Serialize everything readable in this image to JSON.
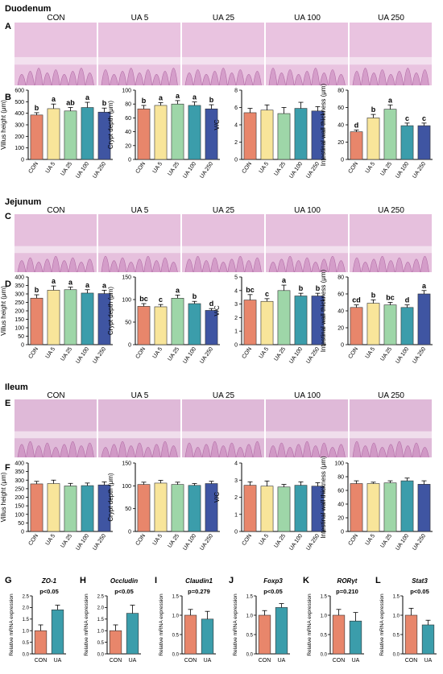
{
  "groups": [
    "CON",
    "UA 5",
    "UA 25",
    "UA 100",
    "UA 250"
  ],
  "colors": [
    "#E8866B",
    "#F8E59A",
    "#9ED6A8",
    "#3B9DAB",
    "#3F55A2"
  ],
  "sections": [
    {
      "name": "Duodenum",
      "panel_a": "A",
      "panel_b": "B"
    },
    {
      "name": "Jejunum",
      "panel_a": "C",
      "panel_b": "D"
    },
    {
      "name": "Ileum",
      "panel_a": "E",
      "panel_b": "F"
    }
  ],
  "chart_data": [
    {
      "type": "bar",
      "section": "Duodenum",
      "ylabel": "Villus height (μm)",
      "ylim": [
        0,
        600
      ],
      "ticks": [
        0,
        100,
        200,
        300,
        400,
        500,
        600
      ],
      "categories": [
        "CON",
        "UA 5",
        "UA 25",
        "UA 100",
        "UA 250"
      ],
      "values": [
        385,
        440,
        420,
        450,
        410
      ],
      "errors": [
        20,
        40,
        30,
        45,
        35
      ],
      "letters": [
        "b",
        "a",
        "ab",
        "a",
        "b"
      ]
    },
    {
      "type": "bar",
      "section": "Duodenum",
      "ylabel": "Crypt depth (μm)",
      "ylim": [
        0,
        100
      ],
      "ticks": [
        0,
        20,
        40,
        60,
        80,
        100
      ],
      "categories": [
        "CON",
        "UA 5",
        "UA 25",
        "UA 100",
        "UA 250"
      ],
      "values": [
        73,
        78,
        80,
        78,
        73
      ],
      "errors": [
        5,
        4,
        5,
        5,
        6
      ],
      "letters": [
        "b",
        "a",
        "a",
        "a",
        "b"
      ]
    },
    {
      "type": "bar",
      "section": "Duodenum",
      "ylabel": "V/C",
      "ylim": [
        0,
        8
      ],
      "ticks": [
        0,
        2,
        4,
        6,
        8
      ],
      "categories": [
        "CON",
        "UA 5",
        "UA 25",
        "UA 100",
        "UA 250"
      ],
      "values": [
        5.4,
        5.7,
        5.3,
        5.9,
        5.6
      ],
      "errors": [
        0.5,
        0.6,
        0.7,
        0.7,
        0.5
      ],
      "letters": [
        "",
        "",
        "",
        "",
        ""
      ]
    },
    {
      "type": "bar",
      "section": "Duodenum",
      "ylabel": "Intestinal wall thickness (μm)",
      "ylim": [
        0,
        80
      ],
      "ticks": [
        0,
        20,
        40,
        60,
        80
      ],
      "categories": [
        "CON",
        "UA 5",
        "UA 25",
        "UA 100",
        "UA 250"
      ],
      "values": [
        32,
        48,
        58,
        39,
        39
      ],
      "errors": [
        2,
        4,
        5,
        3,
        3
      ],
      "letters": [
        "d",
        "b",
        "a",
        "c",
        "c"
      ]
    },
    {
      "type": "bar",
      "section": "Jejunum",
      "ylabel": "Villus height (μm)",
      "ylim": [
        0,
        400
      ],
      "ticks": [
        0,
        50,
        100,
        150,
        200,
        250,
        300,
        350,
        400
      ],
      "categories": [
        "CON",
        "UA 5",
        "UA 25",
        "UA 100",
        "UA 250"
      ],
      "values": [
        275,
        322,
        325,
        305,
        302
      ],
      "errors": [
        20,
        25,
        15,
        20,
        20
      ],
      "letters": [
        "b",
        "a",
        "a",
        "a",
        "a"
      ]
    },
    {
      "type": "bar",
      "section": "Jejunum",
      "ylabel": "Crypt depth (μm)",
      "ylim": [
        0,
        150
      ],
      "ticks": [
        0,
        50,
        100,
        150
      ],
      "categories": [
        "CON",
        "UA 5",
        "UA 25",
        "UA 100",
        "UA 250"
      ],
      "values": [
        85,
        84,
        103,
        91,
        76
      ],
      "errors": [
        6,
        5,
        7,
        5,
        4
      ],
      "letters": [
        "bc",
        "c",
        "a",
        "b",
        "d"
      ]
    },
    {
      "type": "bar",
      "section": "Jejunum",
      "ylabel": "V/C",
      "ylim": [
        0,
        5
      ],
      "ticks": [
        0,
        1,
        2,
        3,
        4,
        5
      ],
      "categories": [
        "CON",
        "UA 5",
        "UA 25",
        "UA 100",
        "UA 250"
      ],
      "values": [
        3.3,
        3.2,
        4.0,
        3.6,
        3.6
      ],
      "errors": [
        0.4,
        0.2,
        0.4,
        0.2,
        0.2
      ],
      "letters": [
        "bc",
        "c",
        "a",
        "b",
        "b"
      ]
    },
    {
      "type": "bar",
      "section": "Jejunum",
      "ylabel": "Intestinal wall thickness (μm)",
      "ylim": [
        0,
        80
      ],
      "ticks": [
        0,
        20,
        40,
        60,
        80
      ],
      "categories": [
        "CON",
        "UA 5",
        "UA 25",
        "UA 100",
        "UA 250"
      ],
      "values": [
        44,
        49,
        47,
        44,
        60
      ],
      "errors": [
        3,
        4,
        3,
        3,
        4
      ],
      "letters": [
        "cd",
        "b",
        "bc",
        "d",
        "a"
      ]
    },
    {
      "type": "bar",
      "section": "Ileum",
      "ylabel": "Villus height (μm)",
      "ylim": [
        0,
        400
      ],
      "ticks": [
        0,
        50,
        100,
        150,
        200,
        250,
        300,
        350,
        400
      ],
      "categories": [
        "CON",
        "UA 5",
        "UA 25",
        "UA 100",
        "UA 250"
      ],
      "values": [
        278,
        280,
        266,
        268,
        272
      ],
      "errors": [
        15,
        20,
        15,
        15,
        18
      ],
      "letters": [
        "",
        "",
        "",
        "",
        ""
      ]
    },
    {
      "type": "bar",
      "section": "Ileum",
      "ylabel": "Crypt depth (μm)",
      "ylim": [
        0,
        150
      ],
      "ticks": [
        0,
        50,
        100,
        150
      ],
      "categories": [
        "CON",
        "UA 5",
        "UA 25",
        "UA 100",
        "UA 250"
      ],
      "values": [
        103,
        106,
        103,
        101,
        105
      ],
      "errors": [
        5,
        6,
        5,
        4,
        5
      ],
      "letters": [
        "",
        "",
        "",
        "",
        ""
      ]
    },
    {
      "type": "bar",
      "section": "Ileum",
      "ylabel": "V/C",
      "ylim": [
        0,
        4
      ],
      "ticks": [
        0,
        1,
        2,
        3,
        4
      ],
      "categories": [
        "CON",
        "UA 5",
        "UA 25",
        "UA 100",
        "UA 250"
      ],
      "values": [
        2.7,
        2.65,
        2.6,
        2.7,
        2.65
      ],
      "errors": [
        0.2,
        0.3,
        0.15,
        0.2,
        0.2
      ],
      "letters": [
        "",
        "",
        "",
        "",
        ""
      ]
    },
    {
      "type": "bar",
      "section": "Ileum",
      "ylabel": "Intestinal wall thickness (μm)",
      "ylim": [
        0,
        100
      ],
      "ticks": [
        0,
        20,
        40,
        60,
        80,
        100
      ],
      "categories": [
        "CON",
        "UA 5",
        "UA 25",
        "UA 100",
        "UA 250"
      ],
      "values": [
        70,
        70,
        71,
        74,
        69
      ],
      "errors": [
        4,
        2,
        3,
        4,
        5
      ],
      "letters": [
        "",
        "",
        "",
        "",
        ""
      ]
    }
  ],
  "mrna": {
    "ylabel": "Relative mRNA expression",
    "categories": [
      "CON",
      "UA"
    ],
    "colors": [
      "#E8866B",
      "#3B9DAB"
    ],
    "panels": [
      {
        "letter": "G",
        "gene": "ZO-1",
        "pval": "p<0.05",
        "ylim": [
          0,
          2.5
        ],
        "ticks": [
          0.0,
          0.5,
          1.0,
          1.5,
          2.0,
          2.5
        ],
        "values": [
          1.0,
          1.9
        ],
        "errors": [
          0.25,
          0.2
        ]
      },
      {
        "letter": "H",
        "gene": "Occludin",
        "pval": "p<0.05",
        "ylim": [
          0,
          2.5
        ],
        "ticks": [
          0.0,
          0.5,
          1.0,
          1.5,
          2.0,
          2.5
        ],
        "values": [
          1.0,
          1.75
        ],
        "errors": [
          0.25,
          0.35
        ]
      },
      {
        "letter": "I",
        "gene": "Claudin1",
        "pval": "p=0.279",
        "ylim": [
          0,
          1.5
        ],
        "ticks": [
          0.0,
          0.5,
          1.0,
          1.5
        ],
        "values": [
          1.0,
          0.9
        ],
        "errors": [
          0.15,
          0.2
        ]
      },
      {
        "letter": "J",
        "gene": "Foxp3",
        "pval": "p<0.05",
        "ylim": [
          0,
          1.5
        ],
        "ticks": [
          0.0,
          0.5,
          1.0,
          1.5
        ],
        "values": [
          1.0,
          1.2
        ],
        "errors": [
          0.12,
          0.1
        ]
      },
      {
        "letter": "K",
        "gene": "RORγt",
        "pval": "p=0.210",
        "ylim": [
          0,
          1.5
        ],
        "ticks": [
          0.0,
          0.5,
          1.0,
          1.5
        ],
        "values": [
          1.0,
          0.85
        ],
        "errors": [
          0.15,
          0.22
        ]
      },
      {
        "letter": "L",
        "gene": "Stat3",
        "pval": "p<0.05",
        "ylim": [
          0,
          1.5
        ],
        "ticks": [
          0.0,
          0.5,
          1.0,
          1.5
        ],
        "values": [
          1.0,
          0.75
        ],
        "errors": [
          0.18,
          0.12
        ]
      }
    ]
  }
}
